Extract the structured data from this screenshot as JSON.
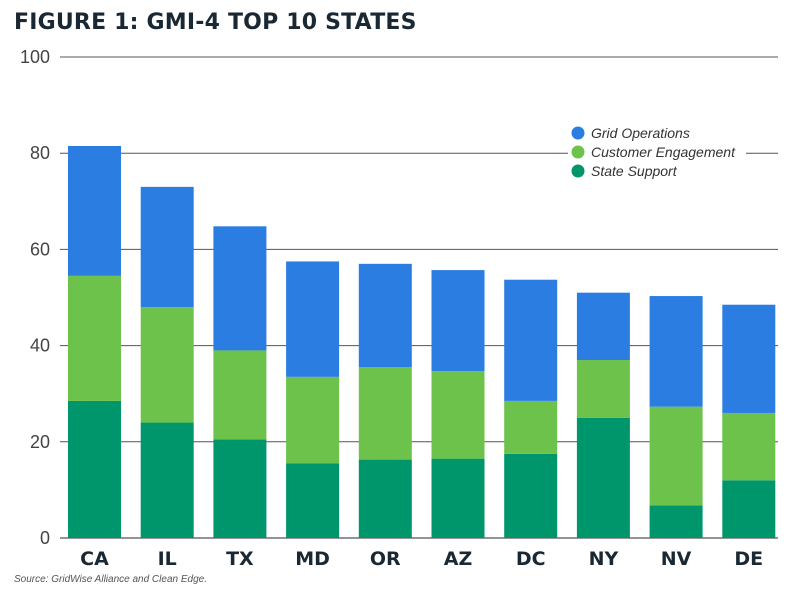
{
  "title": "FIGURE 1: GMI-4 TOP 10 STATES",
  "source": "Source: GridWise Alliance and Clean Edge.",
  "chart_data": {
    "type": "bar",
    "stacked": true,
    "categories": [
      "CA",
      "IL",
      "TX",
      "MD",
      "OR",
      "AZ",
      "DC",
      "NY",
      "NV",
      "DE"
    ],
    "series": [
      {
        "name": "State Support",
        "color": "#00966b",
        "values": [
          28.5,
          24,
          20.5,
          15.5,
          16.3,
          16.5,
          17.5,
          25,
          6.8,
          12
        ]
      },
      {
        "name": "Customer Engagement",
        "color": "#6cc24a",
        "values": [
          26,
          24,
          18.5,
          18,
          19.2,
          18.2,
          11,
          12,
          20.5,
          14
        ]
      },
      {
        "name": "Grid Operations",
        "color": "#2b7de1",
        "values": [
          27,
          25,
          25.8,
          24,
          21.5,
          21,
          25.2,
          14,
          23,
          22.5
        ]
      }
    ],
    "legend_order": [
      "Grid Operations",
      "Customer Engagement",
      "State Support"
    ],
    "legend_position": "top-right",
    "ylim": [
      0,
      100
    ],
    "yticks": [
      0,
      20,
      40,
      60,
      80,
      100
    ],
    "grid": true
  }
}
